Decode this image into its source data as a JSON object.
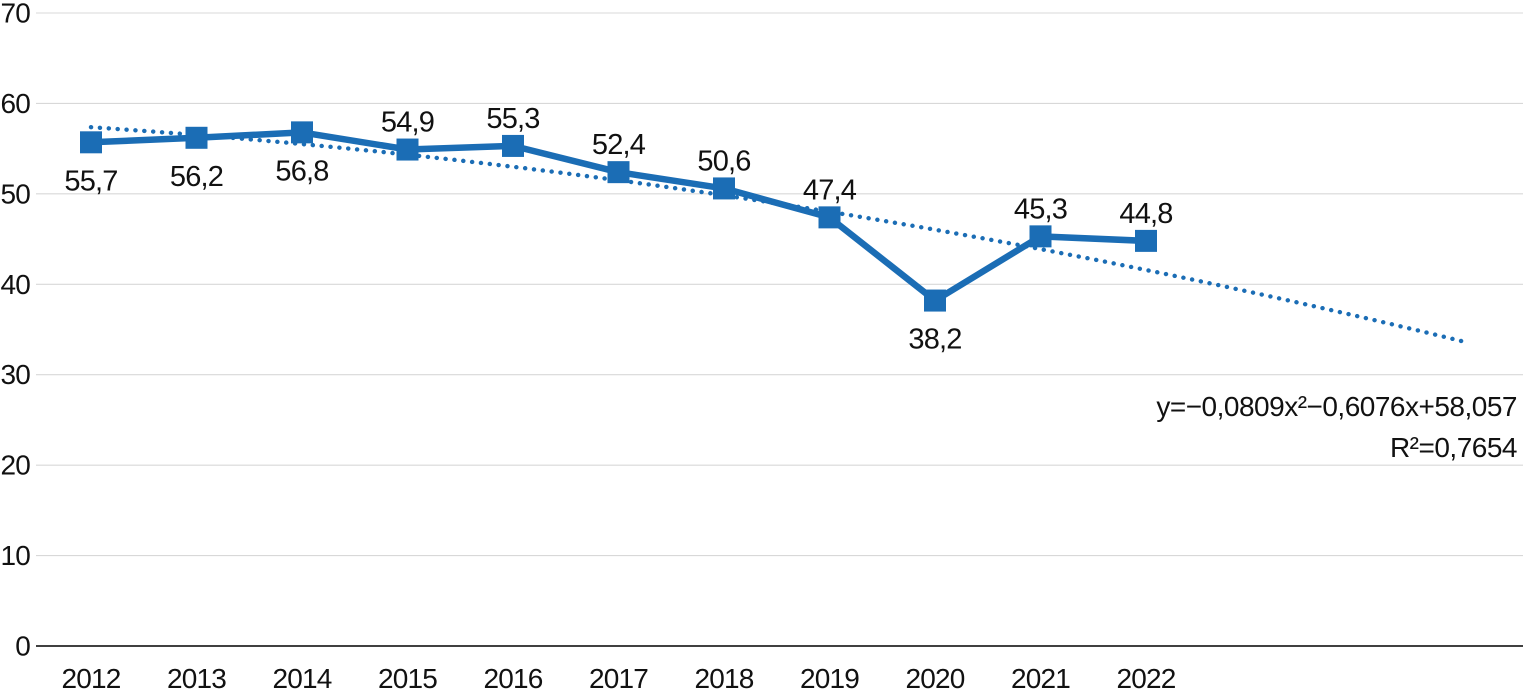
{
  "chart_data": {
    "type": "line",
    "title": "",
    "xlabel": "",
    "ylabel": "",
    "categories": [
      "2012",
      "2013",
      "2014",
      "2015",
      "2016",
      "2017",
      "2018",
      "2019",
      "2020",
      "2021",
      "2022"
    ],
    "series": [
      {
        "name": "values",
        "values": [
          55.7,
          56.2,
          56.8,
          54.9,
          55.3,
          52.4,
          50.6,
          47.4,
          38.2,
          45.3,
          44.8
        ]
      }
    ],
    "point_labels": [
      "55,7",
      "56,2",
      "56,8",
      "54,9",
      "55,3",
      "52,4",
      "50,6",
      "47,4",
      "38,2",
      "45,3",
      "44,8"
    ],
    "point_label_positions": [
      "below",
      "below",
      "below",
      "above",
      "above",
      "above",
      "above",
      "above",
      "below",
      "above",
      "above"
    ],
    "ylim": [
      0,
      70
    ],
    "yticks": [
      "0",
      "10",
      "20",
      "30",
      "40",
      "50",
      "60",
      "70"
    ],
    "grid": true,
    "legend": "none",
    "marker": "square",
    "trendline": {
      "type": "polynomial",
      "order": 2,
      "a": -0.0809,
      "b": -0.6076,
      "c": 58.057,
      "t_start": 1,
      "t_end": 14,
      "style": "dotted",
      "equation": "y=−0,0809x²−0,6076x+58,057",
      "r_squared": "R²=0,7654"
    },
    "colors": {
      "series": "#1B6DB5",
      "trend": "#1B6DB5",
      "grid": "#D8D8D8",
      "axis": "#000000",
      "text": "#111111",
      "background": "#FFFFFF"
    }
  }
}
